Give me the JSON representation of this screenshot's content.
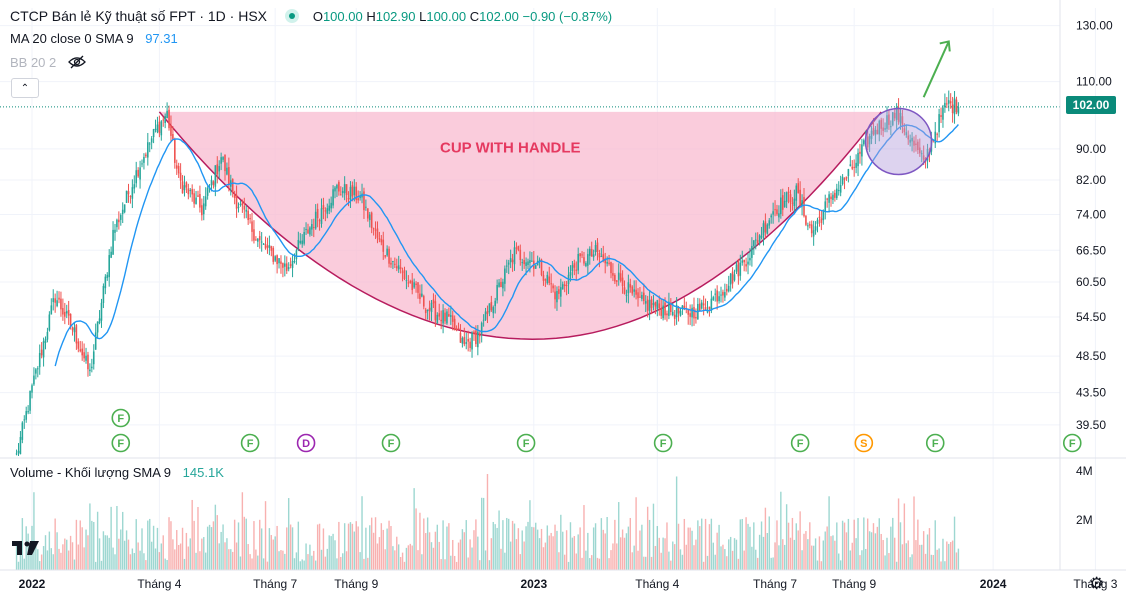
{
  "legend": {
    "symbol": "CTCP Bán lẻ Kỹ thuật số FPT · 1D · HSX",
    "o_label": "O",
    "o_val": "100.00",
    "h_label": "H",
    "h_val": "102.90",
    "l_label": "L",
    "l_val": "100.00",
    "c_label": "C",
    "c_val": "102.00",
    "change": "−0.90 (−0.87%)",
    "ma_label": "MA 20 close 0 SMA 9",
    "ma_val": "97.31",
    "bb_label": "BB 20 2"
  },
  "volume_legend": {
    "label": "Volume - Khối lượng SMA 9",
    "value": "145.1K"
  },
  "last_price_tag": "102.00",
  "annotation": "CUP WITH HANDLE",
  "colors": {
    "up": "#26a69a",
    "down": "#ef5350",
    "ma": "#2196f3",
    "cup_fill": "#f8bbd0",
    "cup_line": "#b71c5e",
    "circle": "#7e57c2",
    "arrow": "#4caf50"
  },
  "icons": {
    "eye_off": "eye-off-icon",
    "collapse": "chevron-up-icon",
    "settings": "gear-icon",
    "logo": "tradingview-logo"
  },
  "event_markers": {
    "row1": [
      {
        "x_index": 46,
        "label": "F"
      }
    ],
    "row2": [
      {
        "x_index": 46,
        "label": "F"
      },
      {
        "x_index": 113,
        "label": "F"
      },
      {
        "x_index": 142,
        "label": "D"
      },
      {
        "x_index": 186,
        "label": "F"
      },
      {
        "x_index": 256,
        "label": "F"
      },
      {
        "x_index": 327,
        "label": "F"
      },
      {
        "x_index": 398,
        "label": "F"
      },
      {
        "x_index": 431,
        "label": "S"
      },
      {
        "x_index": 468,
        "label": "F"
      },
      {
        "x_index": 539,
        "label": "F"
      }
    ]
  },
  "chart_data": {
    "type": "candlestick",
    "title": "CTCP Bán lẻ Kỹ thuật số FPT · 1D · HSX",
    "y_axis_ticks": [
      39.5,
      43.5,
      48.5,
      54.5,
      60.5,
      66.5,
      74.0,
      82.0,
      90.0,
      110.0,
      130.0
    ],
    "y_axis_labels": [
      "39.50",
      "43.50",
      "48.50",
      "54.50",
      "60.50",
      "66.50",
      "74.00",
      "82.00",
      "90.00",
      "110.00",
      "130.00"
    ],
    "ylim": [
      36,
      137
    ],
    "y_scale": "log",
    "x_axis_labels": [
      {
        "label": "2022",
        "index": 0,
        "bold": true
      },
      {
        "label": "Tháng 4",
        "index": 66
      },
      {
        "label": "Tháng 7",
        "index": 126
      },
      {
        "label": "Tháng 9",
        "index": 168
      },
      {
        "label": "2023",
        "index": 260,
        "bold": true
      },
      {
        "label": "Tháng 4",
        "index": 324
      },
      {
        "label": "Tháng 7",
        "index": 385
      },
      {
        "label": "Tháng 9",
        "index": 426
      },
      {
        "label": "2024",
        "index": 498,
        "bold": true
      },
      {
        "label": "Tháng 3",
        "index": 551
      }
    ],
    "anchors": [
      [
        -8,
        36
      ],
      [
        0,
        44
      ],
      [
        12,
        58
      ],
      [
        22,
        52
      ],
      [
        30,
        46
      ],
      [
        42,
        70
      ],
      [
        55,
        85
      ],
      [
        64,
        95
      ],
      [
        70,
        100
      ],
      [
        76,
        82
      ],
      [
        88,
        75
      ],
      [
        98,
        88
      ],
      [
        105,
        78
      ],
      [
        118,
        68
      ],
      [
        132,
        63
      ],
      [
        145,
        72
      ],
      [
        158,
        80
      ],
      [
        170,
        78
      ],
      [
        180,
        68
      ],
      [
        192,
        62
      ],
      [
        205,
        56
      ],
      [
        216,
        54
      ],
      [
        224,
        50
      ],
      [
        232,
        52
      ],
      [
        240,
        58
      ],
      [
        250,
        66
      ],
      [
        262,
        64
      ],
      [
        272,
        58
      ],
      [
        282,
        64
      ],
      [
        292,
        66
      ],
      [
        302,
        62
      ],
      [
        314,
        57
      ],
      [
        326,
        56
      ],
      [
        338,
        55
      ],
      [
        348,
        56
      ],
      [
        360,
        60
      ],
      [
        372,
        66
      ],
      [
        384,
        75
      ],
      [
        396,
        79
      ],
      [
        404,
        70
      ],
      [
        414,
        78
      ],
      [
        424,
        84
      ],
      [
        436,
        95
      ],
      [
        448,
        100
      ],
      [
        456,
        92
      ],
      [
        462,
        86
      ],
      [
        468,
        95
      ],
      [
        474,
        103
      ],
      [
        480,
        102
      ]
    ],
    "last_ohlc": {
      "open": 100.0,
      "high": 102.9,
      "low": 100.0,
      "close": 102.0
    },
    "last_price": 102.0,
    "ma_period": 20,
    "volume_ticks": [
      "2M",
      "4M"
    ],
    "volume_sma_value": "145.1K",
    "cup_handle": {
      "left_index": 66,
      "bottom_index": 260,
      "right_index": 440,
      "rim_price": 100.5,
      "bottom_price": 51.0
    }
  }
}
